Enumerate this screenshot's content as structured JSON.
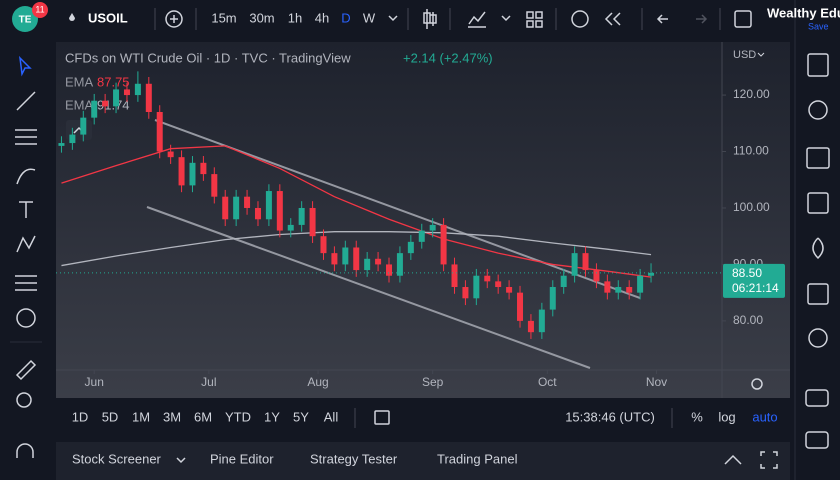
{
  "toolbar": {
    "badge": "11",
    "symbol": "USOIL",
    "intervals": [
      "15m",
      "30m",
      "1h",
      "4h",
      "D",
      "W"
    ],
    "user": "Wealthy Edu",
    "save": "Save"
  },
  "chart_data": {
    "type": "candlestick",
    "title": "CFDs on WTI Crude Oil · 1D · TVC · TradingView",
    "change": "+2.14 (+2.47%)",
    "currency": "USD",
    "up_color": "#22ab94",
    "down_color": "#f23645",
    "x": [
      0,
      2,
      4,
      6,
      8,
      10,
      12,
      14,
      16,
      18,
      20,
      22,
      24,
      26,
      28,
      30,
      32,
      34,
      36,
      38,
      40,
      42,
      44,
      46,
      48,
      50,
      52,
      54,
      56,
      58,
      60,
      62,
      64,
      66,
      68,
      70,
      72,
      74,
      76,
      78,
      80,
      82,
      84,
      86,
      88,
      90,
      92,
      94,
      96,
      98,
      100,
      102,
      104,
      106,
      108
    ],
    "open": [
      111,
      111.5,
      113,
      116,
      119,
      118,
      121,
      120,
      122,
      117,
      110,
      109,
      104,
      108,
      106,
      102,
      98,
      102,
      100,
      98,
      103,
      96,
      97,
      100,
      95,
      92,
      90,
      93,
      89,
      91,
      90,
      88,
      92,
      94,
      96,
      97,
      90,
      86,
      84,
      88,
      87,
      86,
      85,
      80,
      78,
      82,
      86,
      88,
      92,
      89,
      87,
      85,
      86,
      85,
      88
    ],
    "high": [
      112.7,
      114.2,
      117.2,
      120.2,
      120.2,
      122.2,
      122.2,
      124.2,
      123.2,
      118.2,
      111.2,
      110.2,
      109.2,
      109.2,
      107.2,
      103.2,
      103.2,
      103.2,
      101.2,
      104.2,
      104.2,
      98.2,
      101.2,
      101.2,
      96.2,
      93.2,
      94.2,
      94.2,
      92.2,
      92.2,
      91.2,
      93.2,
      95.2,
      97.2,
      98.2,
      98.2,
      91.2,
      87.2,
      89.2,
      89.2,
      88.2,
      87.2,
      86.2,
      81.2,
      83.2,
      87.2,
      89.2,
      93.2,
      93.2,
      90.2,
      88.2,
      87.2,
      87.2,
      89.2,
      90.2
    ],
    "low": [
      109.8,
      110.3,
      111.8,
      114.8,
      116.8,
      116.8,
      118.8,
      118.8,
      115.8,
      108.8,
      107.8,
      102.8,
      102.8,
      104.8,
      100.8,
      96.8,
      96.8,
      98.8,
      96.8,
      96.8,
      94.8,
      94.8,
      95.8,
      93.8,
      90.8,
      88.8,
      88.8,
      87.8,
      87.8,
      88.8,
      86.8,
      86.8,
      90.8,
      92.8,
      94.8,
      88.8,
      84.8,
      82.8,
      82.8,
      85.8,
      84.8,
      83.8,
      78.8,
      76.8,
      76.8,
      80.8,
      84.8,
      86.8,
      87.8,
      85.8,
      83.8,
      83.8,
      83.8,
      83.8,
      86.8
    ],
    "close": [
      111.5,
      113,
      116,
      119,
      118,
      121,
      120,
      122,
      117,
      110,
      109,
      104,
      108,
      106,
      102,
      98,
      102,
      100,
      98,
      103,
      96,
      97,
      100,
      95,
      92,
      90,
      93,
      89,
      91,
      90,
      88,
      92,
      94,
      96,
      97,
      90,
      86,
      84,
      88,
      87,
      86,
      85,
      80,
      78,
      82,
      86,
      88,
      92,
      89,
      87,
      85,
      86,
      85,
      88,
      88.5
    ],
    "series": [
      {
        "name": "EMA",
        "color": "#f23645",
        "last_label": "87.75",
        "x": [
          0,
          10,
          20,
          30,
          40,
          50,
          60,
          70,
          80,
          90,
          100,
          108
        ],
        "values": [
          104.4,
          107.5,
          110.5,
          111,
          107,
          102,
          98,
          94.5,
          92,
          90,
          88.8,
          87.75
        ]
      },
      {
        "name": "EMA",
        "color": "#b2b5be",
        "last_label": "91.74",
        "x": [
          0,
          10,
          20,
          30,
          40,
          50,
          60,
          70,
          80,
          90,
          100,
          108
        ],
        "values": [
          89.8,
          91.5,
          93,
          94.4,
          95.3,
          95.8,
          95.8,
          95.6,
          95,
          93.8,
          92.7,
          91.74
        ]
      }
    ],
    "xlim": [
      -1,
      121
    ],
    "xticks": [
      {
        "value": 6,
        "label": "Jun"
      },
      {
        "value": 27,
        "label": "Jul"
      },
      {
        "value": 47,
        "label": "Aug"
      },
      {
        "value": 68,
        "label": "Sep"
      },
      {
        "value": 89,
        "label": "Oct"
      },
      {
        "value": 109,
        "label": "Nov"
      }
    ],
    "ylim": [
      71.3,
      129.4
    ],
    "yticks": [
      {
        "value": 80,
        "label": "80.00"
      },
      {
        "value": 90,
        "label": "90.00"
      },
      {
        "value": 100,
        "label": "100.00"
      },
      {
        "value": 110,
        "label": "110.00"
      },
      {
        "value": 120,
        "label": "120.00"
      }
    ],
    "grid": false,
    "price_label": "88.50",
    "countdown": "06:21:14"
  },
  "bottom_bar": {
    "ranges": [
      "1D",
      "5D",
      "1M",
      "3M",
      "6M",
      "YTD",
      "1Y",
      "5Y",
      "All"
    ],
    "time": "15:38:46 (UTC)",
    "options": [
      "%",
      "log",
      "auto"
    ]
  },
  "panel": {
    "tabs": [
      "Stock Screener",
      "Pine Editor",
      "Strategy Tester",
      "Trading Panel"
    ]
  }
}
